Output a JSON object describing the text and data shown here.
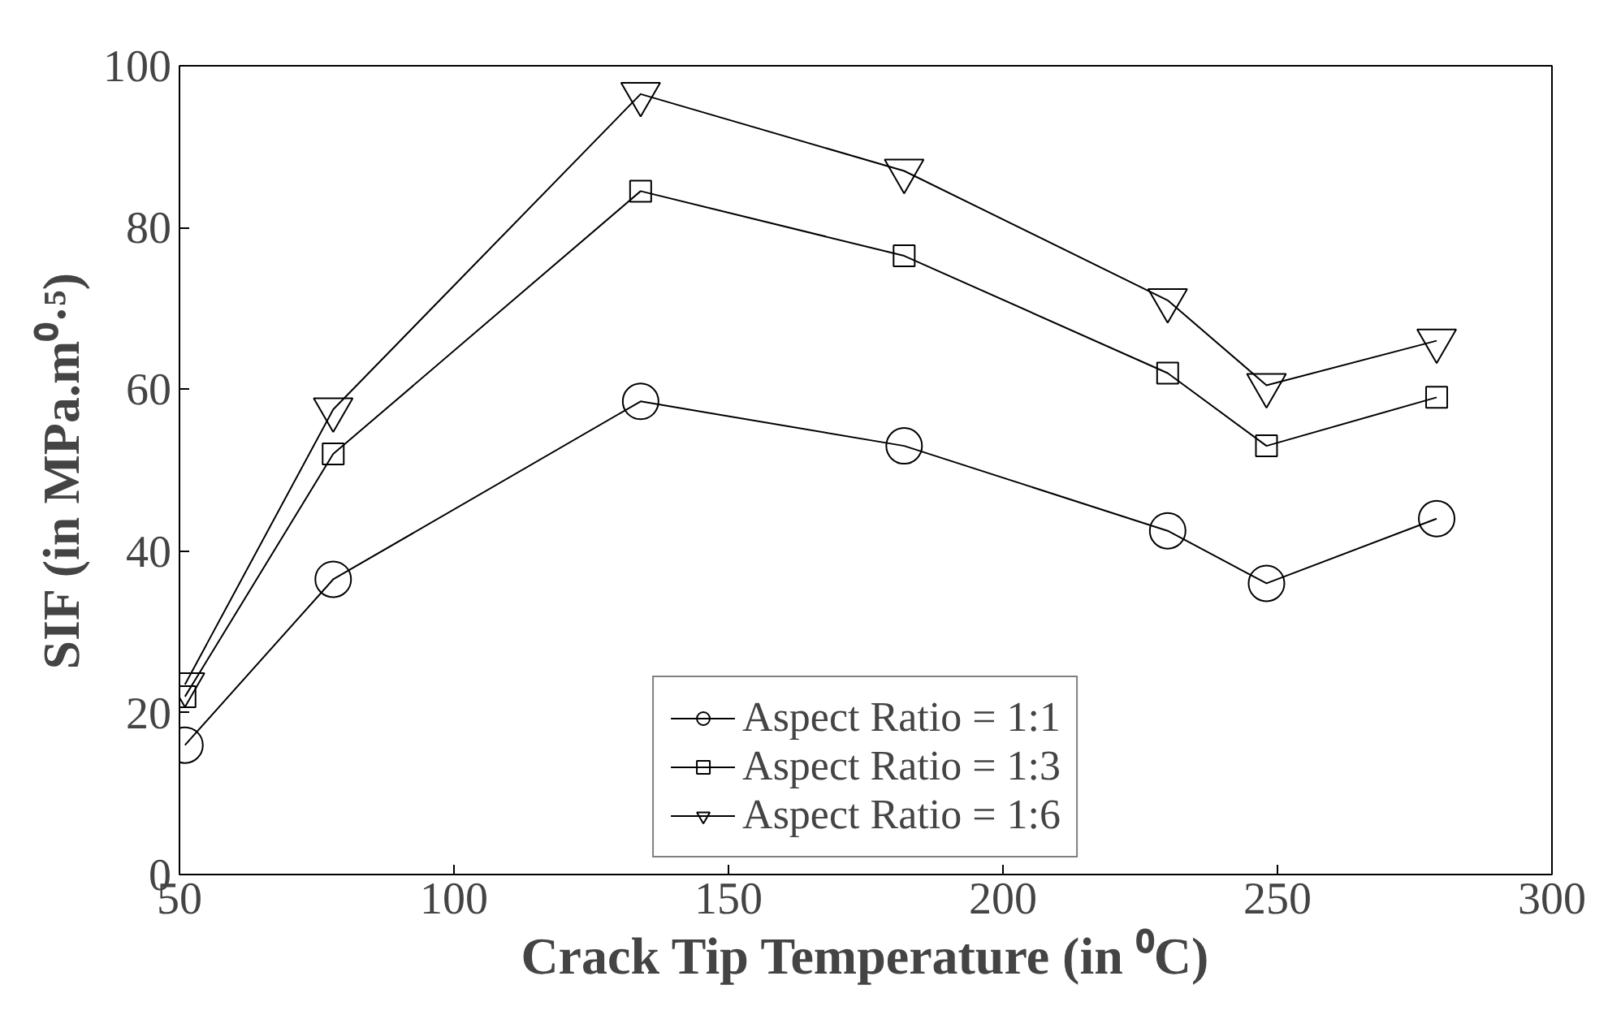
{
  "chart_data": {
    "type": "line",
    "xlabel": "Crack Tip Temperature (in ⁰C)",
    "ylabel": "SIF (in MPa.m⁰·⁵)",
    "x": [
      51,
      78,
      134,
      182,
      230,
      248,
      279
    ],
    "xlim": [
      50,
      300
    ],
    "xticks": [
      50,
      100,
      150,
      200,
      250,
      300
    ],
    "ylim": [
      0,
      100
    ],
    "yticks": [
      0,
      20,
      40,
      60,
      80,
      100
    ],
    "grid": false,
    "legend": "bottom",
    "line_style": "solid",
    "series": [
      {
        "name": "Aspect Ratio = 1:1",
        "color": "#000000",
        "marker": "circle",
        "values": [
          16,
          36.5,
          58.5,
          53,
          42.5,
          36,
          44
        ]
      },
      {
        "name": "Aspect Ratio = 1:3",
        "color": "#000000",
        "marker": "square",
        "values": [
          22,
          52,
          84.5,
          76.5,
          62,
          53,
          59
        ]
      },
      {
        "name": "Aspect Ratio = 1:6",
        "color": "#000000",
        "marker": "triangle",
        "values": [
          23.5,
          57.5,
          96.5,
          87,
          71,
          60.5,
          66
        ]
      }
    ]
  }
}
